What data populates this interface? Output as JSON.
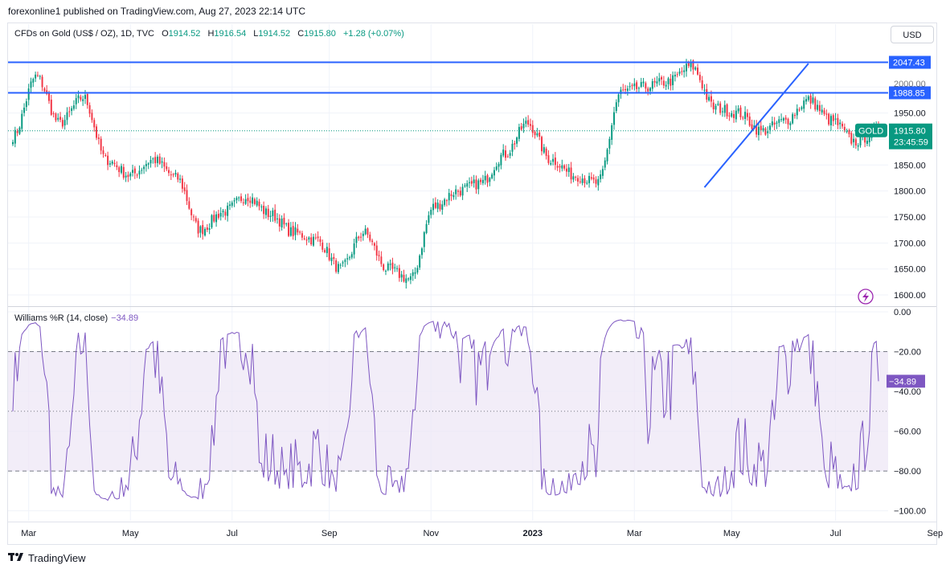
{
  "publisher_line": "forexonline1 published on TradingView.com, Aug 27, 2023 22:14 UTC",
  "legend": {
    "instrument": "CFDs on Gold (US$ / OZ), 1D, TVC",
    "open_label": "O",
    "open": "1914.52",
    "high_label": "H",
    "high": "1916.54",
    "low_label": "L",
    "low": "1914.52",
    "close_label": "C",
    "close": "1915.80",
    "change": "+1.28 (+0.07%)"
  },
  "currency_button": "USD",
  "williams_legend": {
    "name": "Williams %R (14, close)",
    "value": "−34.89"
  },
  "footer_brand": "TradingView",
  "colors": {
    "up": "#089981",
    "down": "#f23645",
    "level_line": "#2962ff",
    "wr_line": "#7e57c2",
    "wr_band": "#ede7f6",
    "grid": "#f0f3fa"
  },
  "icons": [
    "lightning-icon",
    "tradingview-logo-icon"
  ],
  "chart_data": [
    {
      "type": "candlestick",
      "symbol": "GOLD",
      "timeframe": "1D",
      "ylim": [
        1580,
        2090
      ],
      "y_ticks": [
        "1600.00",
        "1650.00",
        "1700.00",
        "1750.00",
        "1800.00",
        "1850.00",
        "1900.00",
        "1950.00",
        "2000.00"
      ],
      "x_ticks": [
        "Mar",
        "May",
        "Jul",
        "Sep",
        "Nov",
        "2023",
        "Mar",
        "May",
        "Jul",
        "Sep"
      ],
      "anchors": [
        [
          "Mar",
          1905
        ],
        [
          "Mar",
          2020
        ],
        [
          "Apr",
          1930
        ],
        [
          "Apr",
          1980
        ],
        [
          "May",
          1860
        ],
        [
          "May",
          1830
        ],
        [
          "Jun",
          1860
        ],
        [
          "Jun",
          1825
        ],
        [
          "Jul",
          1725
        ],
        [
          "Jul",
          1760
        ],
        [
          "Aug",
          1790
        ],
        [
          "Aug",
          1755
        ],
        [
          "Sep",
          1720
        ],
        [
          "Sep",
          1705
        ],
        [
          "Oct",
          1650
        ],
        [
          "Oct",
          1720
        ],
        [
          "Oct",
          1650
        ],
        [
          "Nov",
          1630
        ],
        [
          "Nov",
          1770
        ],
        [
          "Dec",
          1800
        ],
        [
          "Dec",
          1815
        ],
        [
          "Jan",
          1870
        ],
        [
          "Jan",
          1930
        ],
        [
          "Feb",
          1860
        ],
        [
          "Feb",
          1830
        ],
        [
          "Mar",
          1815
        ],
        [
          "Mar",
          1990
        ],
        [
          "Apr",
          2000
        ],
        [
          "Apr",
          2010
        ],
        [
          "May",
          2040
        ],
        [
          "May",
          1960
        ],
        [
          "Jun",
          1950
        ],
        [
          "Jun",
          1915
        ],
        [
          "Jul",
          1935
        ],
        [
          "Jul",
          1975
        ],
        [
          "Aug",
          1935
        ],
        [
          "Aug",
          1895
        ],
        [
          "Aug",
          1915.8
        ]
      ],
      "levels": [
        {
          "name": "resistance-2047",
          "value": 2047.43,
          "label": "2047.43"
        },
        {
          "name": "resistance-1988",
          "value": 1988.85,
          "label": "1988.85"
        }
      ],
      "trendline": {
        "from": [
          "Mar 2023",
          1807
        ],
        "to": [
          "May 2023",
          2045
        ]
      },
      "last_price": {
        "value": 1915.8,
        "label": "1915.80",
        "symbol_label": "GOLD",
        "countdown": "23:45:59"
      }
    },
    {
      "type": "line",
      "name": "Williams %R (14, close)",
      "ylim": [
        -105,
        2
      ],
      "y_ticks": [
        "0.00",
        "−20.00",
        "−40.00",
        "−60.00",
        "−80.00",
        "−100.00"
      ],
      "band": [
        -80,
        -20
      ],
      "midline": -50,
      "last_value": -34.89,
      "last_label": "−34.89"
    }
  ]
}
